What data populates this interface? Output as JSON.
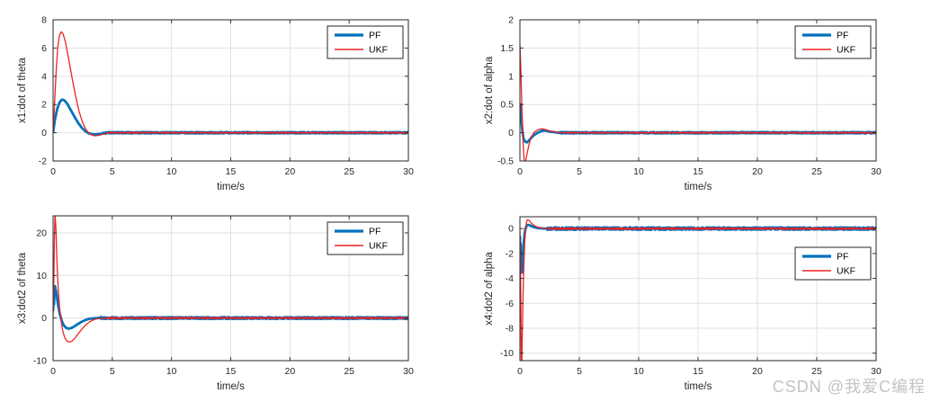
{
  "watermark": {
    "text": "CSDN @我爱C编程",
    "color": "#c3c3c3"
  },
  "style": {
    "axis_color": "#262626",
    "grid_color": "#e0e0e0",
    "background": "#ffffff",
    "pf_color": "#0072BD",
    "ukf_color": "#ee2222"
  },
  "chart_data": [
    {
      "type": "line",
      "ylabel": "x1:dot of theta",
      "xlabel": "time/s",
      "xlim": [
        0,
        30
      ],
      "ylim": [
        -2,
        8
      ],
      "xticks": [
        0,
        5,
        10,
        15,
        20,
        25,
        30
      ],
      "yticks": [
        -2,
        0,
        2,
        4,
        6,
        8
      ],
      "grid": true,
      "legend": {
        "entries": [
          "PF",
          "UKF"
        ],
        "position": "top-right"
      },
      "series": [
        {
          "name": "PF",
          "color": "#0072BD",
          "width": 2.8,
          "noise": {
            "amp": 0.05,
            "from": 4.2
          },
          "points": [
            [
              0,
              0
            ],
            [
              0.15,
              0.9
            ],
            [
              0.35,
              1.7
            ],
            [
              0.55,
              2.15
            ],
            [
              0.75,
              2.35
            ],
            [
              0.95,
              2.3
            ],
            [
              1.2,
              2.05
            ],
            [
              1.5,
              1.6
            ],
            [
              1.8,
              1.15
            ],
            [
              2.1,
              0.72
            ],
            [
              2.4,
              0.38
            ],
            [
              2.7,
              0.12
            ],
            [
              3.0,
              -0.04
            ],
            [
              3.4,
              -0.12
            ],
            [
              3.8,
              -0.1
            ],
            [
              4.2,
              -0.04
            ],
            [
              4.6,
              0
            ],
            [
              30,
              0
            ]
          ]
        },
        {
          "name": "UKF",
          "color": "#ee2222",
          "width": 1.3,
          "noise": {
            "amp": 0.04,
            "from": 4.6
          },
          "points": [
            [
              0,
              0
            ],
            [
              0.1,
              1.6
            ],
            [
              0.25,
              4.2
            ],
            [
              0.4,
              6.1
            ],
            [
              0.55,
              6.95
            ],
            [
              0.7,
              7.15
            ],
            [
              0.85,
              7.0
            ],
            [
              1.05,
              6.4
            ],
            [
              1.3,
              5.3
            ],
            [
              1.6,
              3.9
            ],
            [
              1.9,
              2.6
            ],
            [
              2.2,
              1.5
            ],
            [
              2.5,
              0.7
            ],
            [
              2.8,
              0.2
            ],
            [
              3.1,
              -0.08
            ],
            [
              3.5,
              -0.22
            ],
            [
              3.9,
              -0.18
            ],
            [
              4.3,
              -0.08
            ],
            [
              4.7,
              0
            ],
            [
              30,
              0
            ]
          ]
        }
      ]
    },
    {
      "type": "line",
      "ylabel": "x2:dot of alpha",
      "xlabel": "time/s",
      "xlim": [
        0,
        30
      ],
      "ylim": [
        -0.5,
        2
      ],
      "xticks": [
        0,
        5,
        10,
        15,
        20,
        25,
        30
      ],
      "yticks": [
        -0.5,
        0,
        0.5,
        1,
        1.5,
        2
      ],
      "grid": true,
      "legend": {
        "entries": [
          "PF",
          "UKF"
        ],
        "position": "top-right"
      },
      "series": [
        {
          "name": "PF",
          "color": "#0072BD",
          "width": 2.8,
          "noise": {
            "amp": 0.013,
            "from": 3.4
          },
          "points": [
            [
              0,
              0.52
            ],
            [
              0.1,
              0.3
            ],
            [
              0.2,
              0.05
            ],
            [
              0.3,
              -0.1
            ],
            [
              0.45,
              -0.16
            ],
            [
              0.6,
              -0.17
            ],
            [
              0.75,
              -0.14
            ],
            [
              0.95,
              -0.09
            ],
            [
              1.2,
              -0.04
            ],
            [
              1.5,
              0.0
            ],
            [
              1.8,
              0.03
            ],
            [
              2.1,
              0.04
            ],
            [
              2.5,
              0.02
            ],
            [
              2.9,
              0.01
            ],
            [
              3.3,
              0
            ],
            [
              30,
              0
            ]
          ]
        },
        {
          "name": "UKF",
          "color": "#ee2222",
          "width": 1.3,
          "noise": {
            "amp": 0.01,
            "from": 3.8
          },
          "points": [
            [
              0,
              1.55
            ],
            [
              0.08,
              1.1
            ],
            [
              0.16,
              0.5
            ],
            [
              0.25,
              -0.1
            ],
            [
              0.33,
              -0.42
            ],
            [
              0.4,
              -0.55
            ],
            [
              0.5,
              -0.48
            ],
            [
              0.65,
              -0.32
            ],
            [
              0.8,
              -0.18
            ],
            [
              1.0,
              -0.06
            ],
            [
              1.2,
              0.01
            ],
            [
              1.5,
              0.05
            ],
            [
              1.8,
              0.07
            ],
            [
              2.1,
              0.06
            ],
            [
              2.4,
              0.04
            ],
            [
              2.8,
              0.02
            ],
            [
              3.2,
              0.01
            ],
            [
              3.6,
              0
            ],
            [
              30,
              0
            ]
          ]
        }
      ]
    },
    {
      "type": "line",
      "ylabel": "x3:dot2 of theta",
      "xlabel": "time/s",
      "xlim": [
        0,
        30
      ],
      "ylim": [
        -10,
        24
      ],
      "xticks": [
        0,
        5,
        10,
        15,
        20,
        25,
        30
      ],
      "yticks": [
        -10,
        0,
        10,
        20
      ],
      "grid": true,
      "legend": {
        "entries": [
          "PF",
          "UKF"
        ],
        "position": "top-right"
      },
      "series": [
        {
          "name": "PF",
          "color": "#0072BD",
          "width": 2.8,
          "noise": {
            "amp": 0.22,
            "from": 4.0
          },
          "points": [
            [
              0,
              1.6
            ],
            [
              0.04,
              4.5
            ],
            [
              0.08,
              3.2
            ],
            [
              0.12,
              6.8
            ],
            [
              0.16,
              7.5
            ],
            [
              0.2,
              6.9
            ],
            [
              0.26,
              6.2
            ],
            [
              0.34,
              4.6
            ],
            [
              0.45,
              2.6
            ],
            [
              0.6,
              0.6
            ],
            [
              0.75,
              -0.8
            ],
            [
              0.9,
              -1.7
            ],
            [
              1.1,
              -2.3
            ],
            [
              1.3,
              -2.5
            ],
            [
              1.55,
              -2.35
            ],
            [
              1.8,
              -1.95
            ],
            [
              2.1,
              -1.4
            ],
            [
              2.4,
              -0.9
            ],
            [
              2.7,
              -0.5
            ],
            [
              3.0,
              -0.22
            ],
            [
              3.4,
              -0.06
            ],
            [
              3.8,
              0
            ],
            [
              30,
              0
            ]
          ]
        },
        {
          "name": "UKF",
          "color": "#ee2222",
          "width": 1.3,
          "noise": {
            "amp": 0.18,
            "from": 4.4
          },
          "points": [
            [
              0,
              0
            ],
            [
              0.06,
              9
            ],
            [
              0.12,
              20
            ],
            [
              0.17,
              24.5
            ],
            [
              0.24,
              21
            ],
            [
              0.32,
              14
            ],
            [
              0.42,
              7.5
            ],
            [
              0.55,
              2.5
            ],
            [
              0.7,
              -1.2
            ],
            [
              0.85,
              -3.4
            ],
            [
              1.0,
              -4.7
            ],
            [
              1.2,
              -5.5
            ],
            [
              1.4,
              -5.65
            ],
            [
              1.6,
              -5.4
            ],
            [
              1.85,
              -4.7
            ],
            [
              2.1,
              -3.8
            ],
            [
              2.4,
              -2.7
            ],
            [
              2.7,
              -1.8
            ],
            [
              3.0,
              -1.05
            ],
            [
              3.3,
              -0.55
            ],
            [
              3.6,
              -0.25
            ],
            [
              4.0,
              -0.07
            ],
            [
              4.4,
              0
            ],
            [
              30,
              0
            ]
          ]
        }
      ]
    },
    {
      "type": "line",
      "ylabel": "x4:dot2 of alpha",
      "xlabel": "time/s",
      "xlim": [
        0,
        30
      ],
      "ylim": [
        -10.6,
        0.95
      ],
      "xticks": [
        0,
        5,
        10,
        15,
        20,
        25,
        30
      ],
      "yticks": [
        -10,
        -8,
        -6,
        -4,
        -2,
        0
      ],
      "grid": true,
      "legend": {
        "entries": [
          "PF",
          "UKF"
        ],
        "position": "middle-right"
      },
      "series": [
        {
          "name": "PF",
          "color": "#0072BD",
          "width": 2.8,
          "noise": {
            "amp": 0.1,
            "from": 2.3
          },
          "points": [
            [
              0,
              -0.6
            ],
            [
              0.03,
              -2.4
            ],
            [
              0.06,
              -1.2
            ],
            [
              0.09,
              -3.1
            ],
            [
              0.12,
              -1.9
            ],
            [
              0.15,
              -3.9
            ],
            [
              0.18,
              -2.8
            ],
            [
              0.22,
              -3.4
            ],
            [
              0.26,
              -2.2
            ],
            [
              0.31,
              -1.3
            ],
            [
              0.38,
              -0.55
            ],
            [
              0.46,
              -0.05
            ],
            [
              0.55,
              0.22
            ],
            [
              0.68,
              0.3
            ],
            [
              0.82,
              0.27
            ],
            [
              1.0,
              0.18
            ],
            [
              1.25,
              0.1
            ],
            [
              1.55,
              0.04
            ],
            [
              1.9,
              0.01
            ],
            [
              2.3,
              0
            ],
            [
              30,
              0
            ]
          ]
        },
        {
          "name": "UKF",
          "color": "#ee2222",
          "width": 1.3,
          "noise": {
            "amp": 0.07,
            "from": 2.5
          },
          "points": [
            [
              0,
              -0.15
            ],
            [
              0.04,
              -2.0
            ],
            [
              0.08,
              -6.5
            ],
            [
              0.12,
              -11.2
            ],
            [
              0.16,
              -11.0
            ],
            [
              0.2,
              -8.5
            ],
            [
              0.26,
              -5.5
            ],
            [
              0.33,
              -3.0
            ],
            [
              0.4,
              -1.2
            ],
            [
              0.48,
              0.0
            ],
            [
              0.56,
              0.55
            ],
            [
              0.65,
              0.72
            ],
            [
              0.78,
              0.65
            ],
            [
              0.95,
              0.45
            ],
            [
              1.15,
              0.28
            ],
            [
              1.4,
              0.14
            ],
            [
              1.7,
              0.06
            ],
            [
              2.1,
              0.02
            ],
            [
              2.5,
              0
            ],
            [
              30,
              0
            ]
          ]
        }
      ]
    }
  ]
}
